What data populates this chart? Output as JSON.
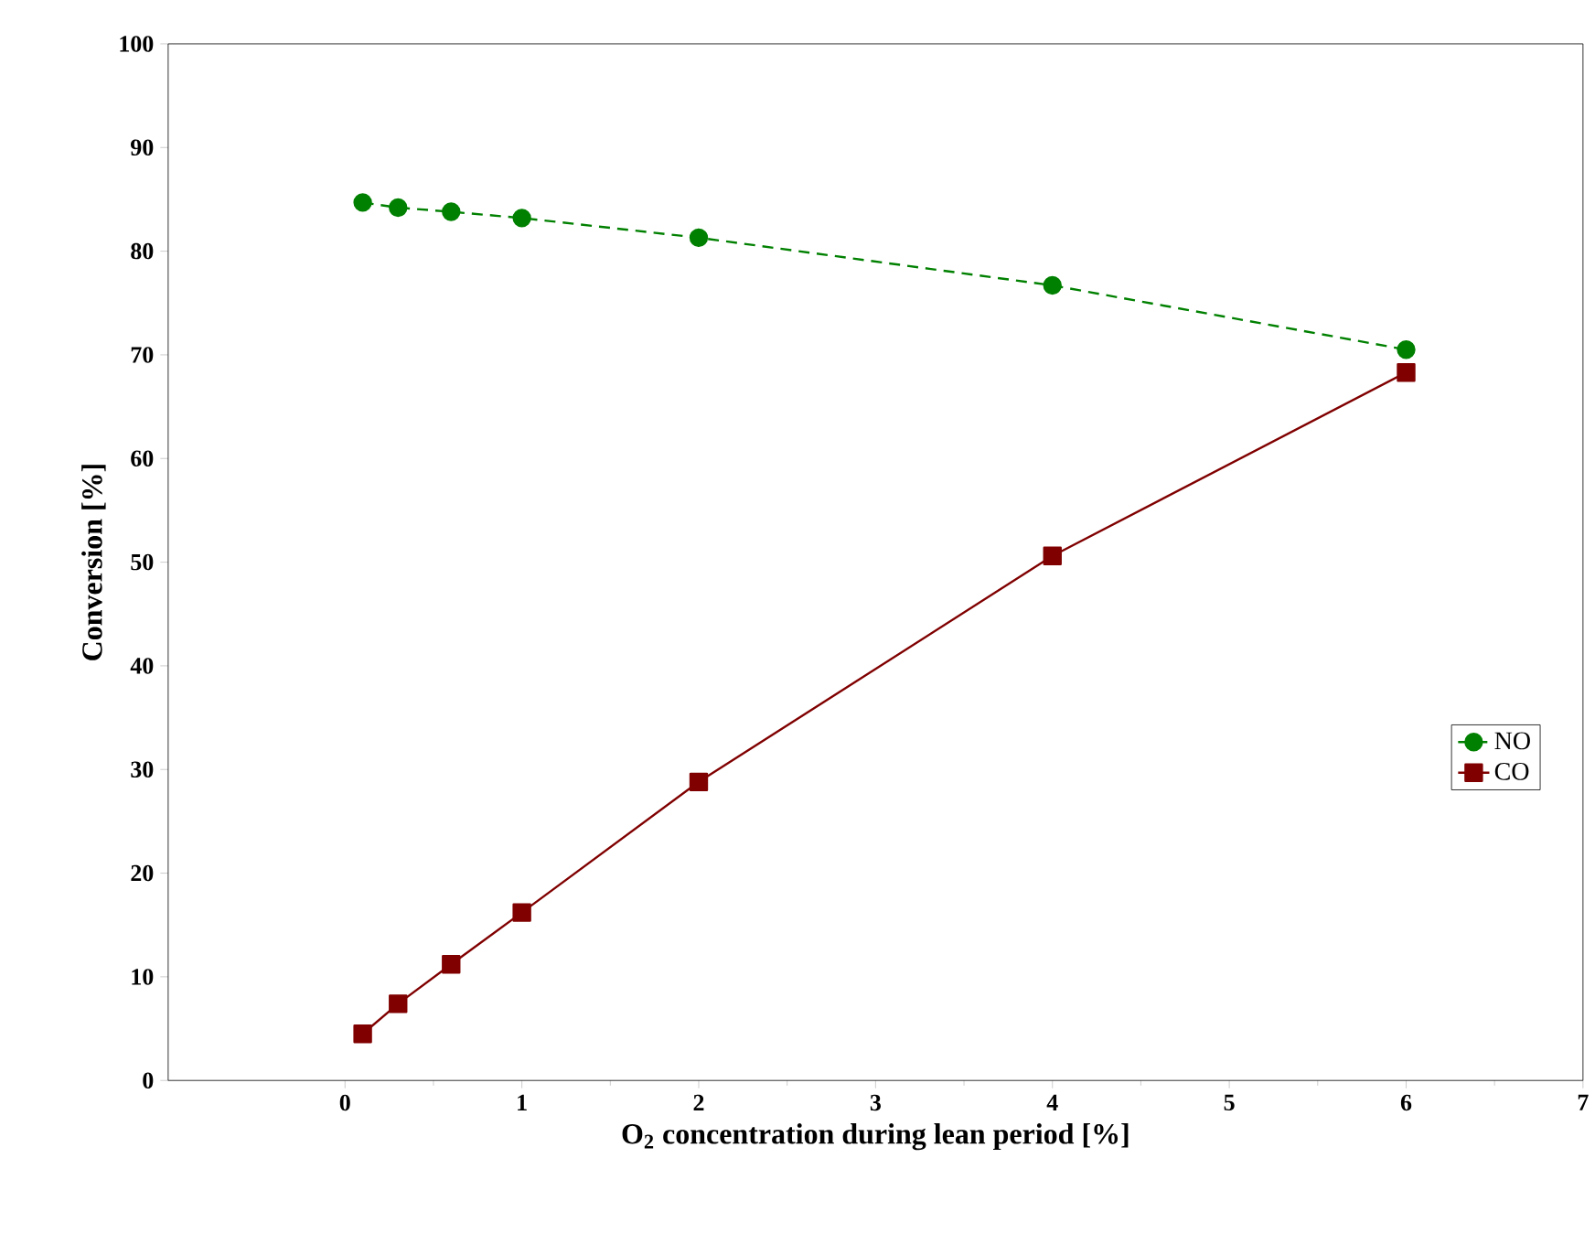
{
  "chart_data": {
    "type": "line",
    "xlabel": "O$_{2}$ concentration during lean period [%]",
    "ylabel": "Conversion [%]",
    "xlim": [
      -1,
      7
    ],
    "xticks": [
      0,
      1,
      2,
      3,
      4,
      5,
      6,
      7
    ],
    "ylim": [
      0,
      100
    ],
    "yticks": [
      0,
      10,
      20,
      30,
      40,
      50,
      60,
      70,
      80,
      90,
      100
    ],
    "x": [
      0.1,
      0.3,
      0.6,
      1,
      2,
      4,
      6
    ],
    "series": [
      {
        "name": "NO",
        "color": "#008000",
        "marker": "circle",
        "line_style": "dashed",
        "values": [
          84.7,
          84.2,
          83.8,
          83.2,
          81.3,
          76.7,
          70.5
        ]
      },
      {
        "name": "CO",
        "color": "#800000",
        "marker": "square",
        "line_style": "solid",
        "values": [
          4.5,
          7.4,
          11.2,
          16.2,
          28.8,
          50.6,
          68.3
        ]
      }
    ],
    "legend": "right",
    "grid": false
  }
}
